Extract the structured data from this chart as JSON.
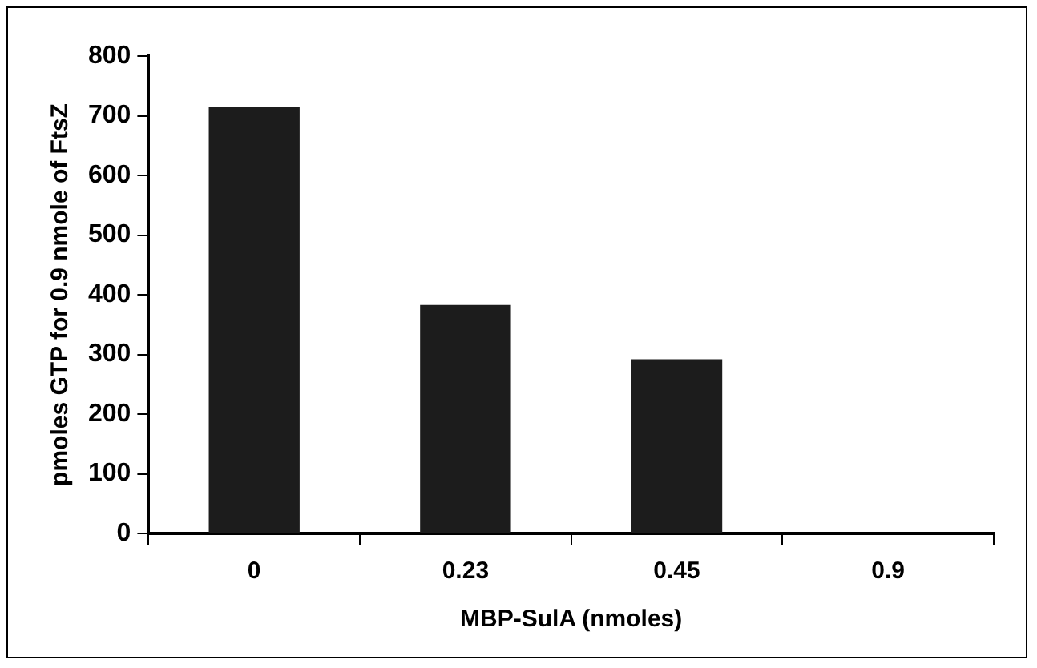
{
  "chart_data": {
    "type": "bar",
    "xlabel": "MBP-SulA (nmoles)",
    "ylabel": "pmoles GTP for 0.9 nmole of FtsZ",
    "categories": [
      "0",
      "0.23",
      "0.45",
      "0.9"
    ],
    "values": [
      714,
      383,
      292,
      0
    ],
    "color": "#1c1c1c",
    "ylim": [
      0,
      800
    ],
    "yticks": [
      0,
      100,
      200,
      300,
      400,
      500,
      600,
      700,
      800
    ],
    "grid": false,
    "legend": false
  }
}
